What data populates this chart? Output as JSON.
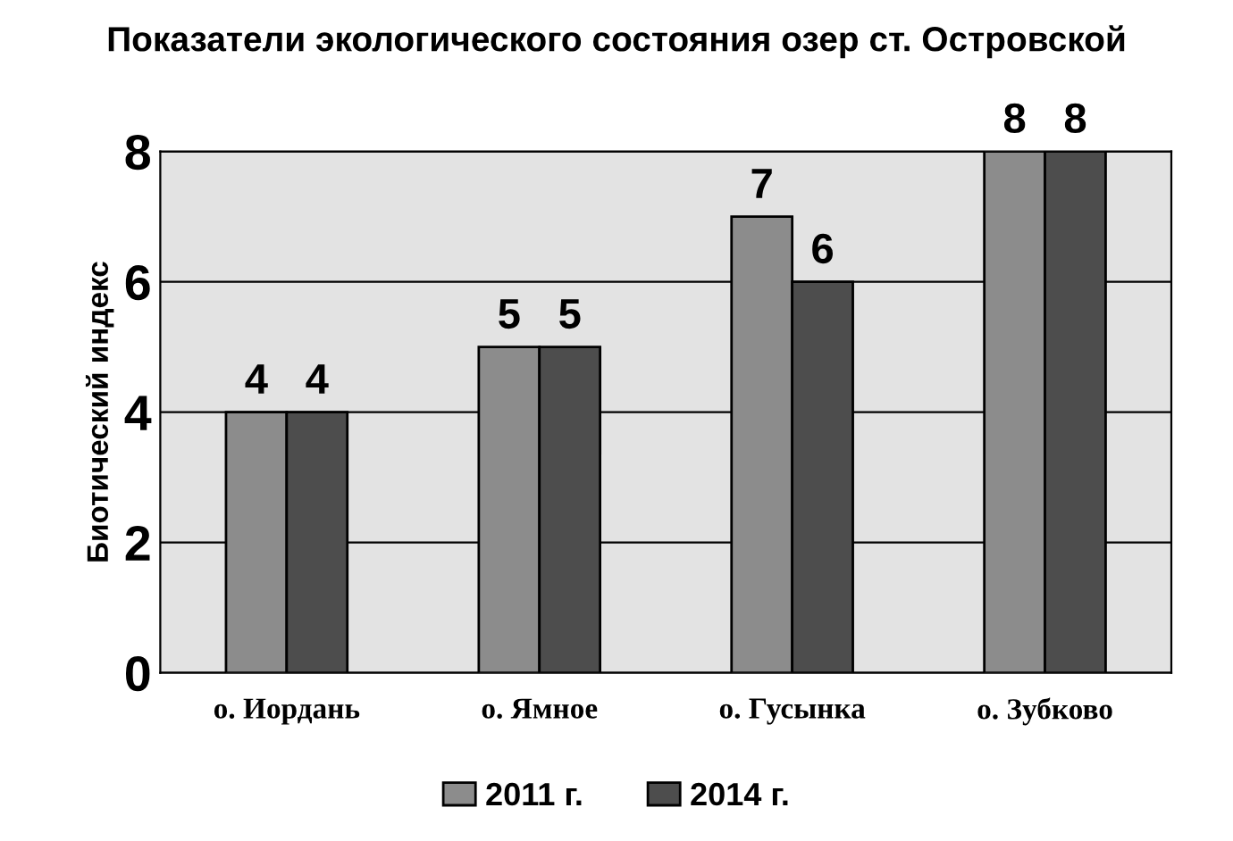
{
  "chart_data": {
    "type": "bar",
    "title": "Показатели экологического состояния озер ст. Островской",
    "ylabel": "Биотический индекс",
    "categories": [
      "о. Иордань",
      "о. Ямное",
      "о. Гусынка",
      "о. Зубково"
    ],
    "series": [
      {
        "name": "2011 г.",
        "color": "#8c8c8c",
        "values": [
          4,
          5,
          7,
          8
        ]
      },
      {
        "name": "2014 г.",
        "color": "#4d4d4d",
        "values": [
          4,
          5,
          6,
          8
        ]
      }
    ],
    "ylim": [
      0,
      8
    ],
    "yticks": [
      0,
      2,
      4,
      6,
      8
    ],
    "grid": "y",
    "legend": "bottom",
    "data_labels": true
  }
}
